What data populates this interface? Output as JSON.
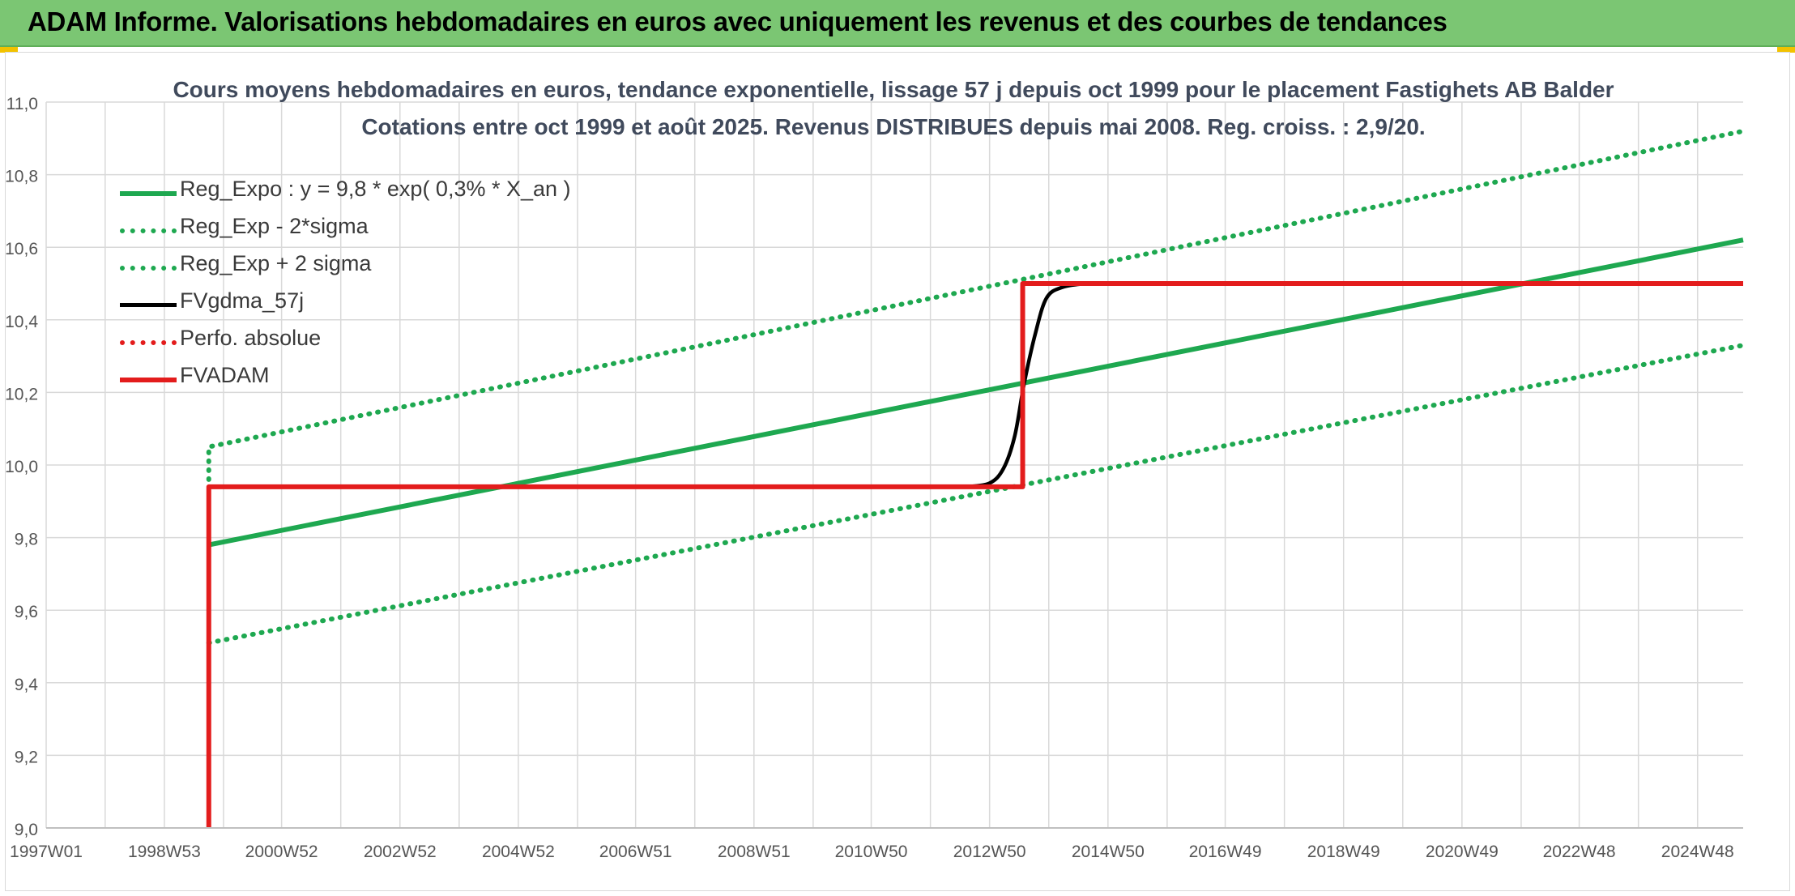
{
  "header": {
    "title": "ADAM Informe. Valorisations hebdomadaires en euros avec uniquement les revenus et des courbes de tendances"
  },
  "chart_data": {
    "type": "line",
    "title": "Cours moyens hebdomadaires en euros, tendance exponentielle, lissage 57 j depuis oct 1999 pour le placement Fastighets AB Balder",
    "subtitle": "Cotations entre oct 1999 et août 2025. Revenus DISTRIBUES depuis mai 2008. Reg. croiss. : 2,9/20.",
    "xlabel": "",
    "ylabel": "",
    "x_range": [
      "1997W01",
      "2025W36"
    ],
    "x_ticks": [
      "1997W01",
      "1998W53",
      "2000W52",
      "2002W52",
      "2004W52",
      "2006W51",
      "2008W51",
      "2010W50",
      "2012W50",
      "2014W50",
      "2016W49",
      "2018W49",
      "2020W49",
      "2022W48",
      "2024W48"
    ],
    "x_minor_ticks": [
      "1997W53",
      "1999W53",
      "2001W52",
      "2003W52",
      "2005W52",
      "2007W51",
      "2009W51",
      "2011W50",
      "2013W50",
      "2015W50",
      "2017W49",
      "2019W49",
      "2021W49",
      "2023W48"
    ],
    "ylim": [
      9.0,
      11.0
    ],
    "y_ticks": [
      "9,0",
      "9,2",
      "9,4",
      "9,6",
      "9,8",
      "10,0",
      "10,2",
      "10,4",
      "10,6",
      "10,8",
      "11,0"
    ],
    "grid": true,
    "legend_position": "top-left",
    "series": [
      {
        "name": "Reg_Expo : y = 9,8 * exp( 0,3% *  X_an )",
        "color": "#1ea850",
        "style": "solid",
        "points": [
          [
            "1999W40",
            9.78
          ],
          [
            "2025W36",
            10.62
          ]
        ]
      },
      {
        "name": "Reg_Exp - 2*sigma",
        "color": "#1ea850",
        "style": "dotted",
        "points": [
          [
            "1999W40",
            9.51
          ],
          [
            "2025W36",
            10.33
          ]
        ]
      },
      {
        "name": "Reg_Exp + 2 sigma",
        "color": "#1ea850",
        "style": "dotted",
        "points": [
          [
            "1999W40",
            9.96
          ],
          [
            "1999W40",
            10.05
          ],
          [
            "2025W36",
            10.92
          ]
        ]
      },
      {
        "name": "FVgdma_57j",
        "color": "#000000",
        "style": "solid",
        "points": [
          [
            "2012W30",
            9.94
          ],
          [
            "2012W50",
            9.95
          ],
          [
            "2013W10",
            9.99
          ],
          [
            "2013W20",
            10.08
          ],
          [
            "2013W28",
            10.22
          ],
          [
            "2013W38",
            10.36
          ],
          [
            "2013W48",
            10.46
          ],
          [
            "2014W10",
            10.49
          ],
          [
            "2014W30",
            10.5
          ]
        ]
      },
      {
        "name": "Perfo. absolue",
        "color": "#e31c1c",
        "style": "dotted",
        "points": []
      },
      {
        "name": "FVADAM",
        "color": "#e31c1c",
        "style": "solid",
        "points": [
          [
            "1999W40",
            9.0
          ],
          [
            "1999W40",
            9.94
          ],
          [
            "2013W27",
            9.94
          ],
          [
            "2013W27",
            10.5
          ],
          [
            "2025W36",
            10.5
          ]
        ]
      }
    ]
  }
}
